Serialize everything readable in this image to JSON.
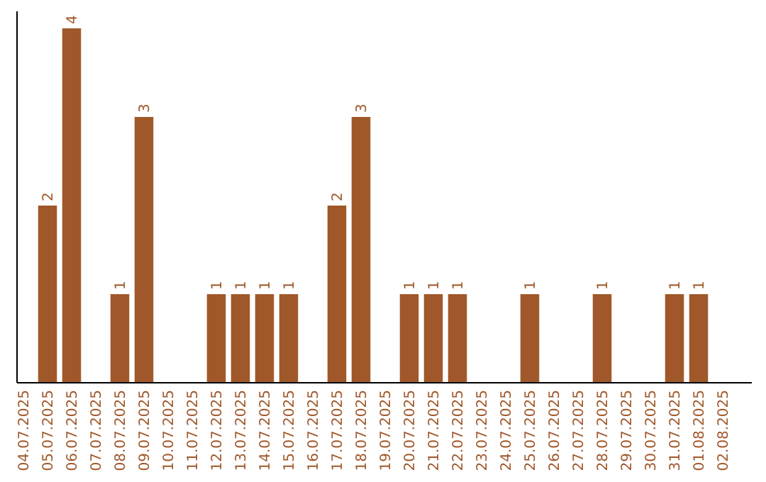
{
  "chart_data": {
    "type": "bar",
    "categories": [
      "04.07.2025",
      "05.07.2025",
      "06.07.2025",
      "07.07.2025",
      "08.07.2025",
      "09.07.2025",
      "10.07.2025",
      "11.07.2025",
      "12.07.2025",
      "13.07.2025",
      "14.07.2025",
      "15.07.2025",
      "16.07.2025",
      "17.07.2025",
      "18.07.2025",
      "19.07.2025",
      "20.07.2025",
      "21.07.2025",
      "22.07.2025",
      "23.07.2025",
      "24.07.2025",
      "25.07.2025",
      "26.07.2025",
      "27.07.2025",
      "28.07.2025",
      "29.07.2025",
      "30.07.2025",
      "31.07.2025",
      "01.08.2025",
      "02.08.2025"
    ],
    "values": [
      0,
      2,
      4,
      0,
      1,
      3,
      0,
      0,
      1,
      1,
      1,
      1,
      0,
      2,
      3,
      0,
      1,
      1,
      1,
      0,
      0,
      1,
      0,
      0,
      1,
      0,
      0,
      1,
      1,
      0
    ],
    "value_labels": [
      null,
      "2",
      "4",
      null,
      "1",
      "3",
      null,
      null,
      "1",
      "1",
      "1",
      "1",
      null,
      "2",
      "3",
      null,
      "1",
      "1",
      "1",
      null,
      null,
      "1",
      null,
      null,
      "1",
      null,
      null,
      "1",
      "1",
      null
    ],
    "color": "#a0582a"
  }
}
